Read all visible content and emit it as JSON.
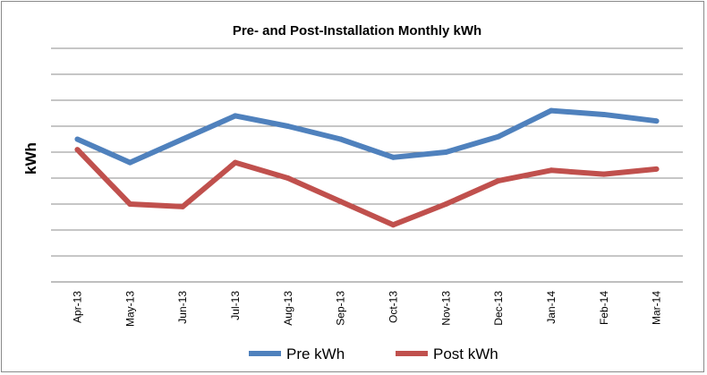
{
  "chart_data": {
    "type": "line",
    "title": "Pre- and Post-Installation Monthly kWh",
    "xlabel": "",
    "ylabel": "kWh",
    "categories": [
      "Apr-13",
      "May-13",
      "Jun-13",
      "Jul-13",
      "Aug-13",
      "Sep-13",
      "Oct-13",
      "Nov-13",
      "Dec-13",
      "Jan-14",
      "Feb-14",
      "Mar-14"
    ],
    "series": [
      {
        "name": "Pre kWh",
        "color": "#4f81bd",
        "values": [
          5.5,
          4.6,
          5.5,
          6.4,
          6.0,
          5.5,
          4.8,
          5.0,
          5.6,
          6.6,
          6.45,
          6.2
        ]
      },
      {
        "name": "Post kWh",
        "color": "#c0504d",
        "values": [
          5.1,
          3.0,
          2.9,
          4.6,
          4.0,
          3.1,
          2.2,
          3.0,
          3.9,
          4.3,
          4.15,
          4.35
        ]
      }
    ],
    "ylim": [
      0,
      9
    ],
    "y_gridlines": 9,
    "y_tick_labels_shown": false,
    "grid": true,
    "legend_position": "bottom"
  }
}
